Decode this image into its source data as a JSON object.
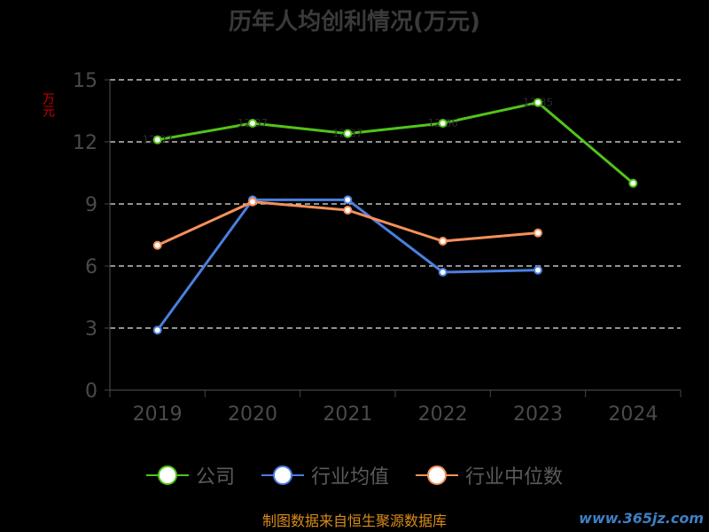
{
  "chart_data": {
    "type": "line",
    "title": "历年人均创利情况(万元)",
    "ylabel": "万元",
    "xlabel": "",
    "categories": [
      "2019",
      "2020",
      "2021",
      "2022",
      "2023",
      "2024"
    ],
    "ylim": [
      0,
      15
    ],
    "yticks": [
      0,
      3,
      6,
      9,
      12,
      15
    ],
    "grid": true,
    "legend_position": "bottom",
    "series": [
      {
        "name": "公司",
        "color": "#52c41a",
        "values": [
          12.1,
          12.9,
          12.4,
          12.9,
          13.9,
          10.0
        ],
        "labels": [
          "12.07",
          "12.87",
          "12.37",
          "12.86",
          "13.85",
          ""
        ]
      },
      {
        "name": "行业均值",
        "color": "#4a7fe0",
        "values": [
          2.9,
          9.2,
          9.2,
          5.7,
          5.8,
          null
        ]
      },
      {
        "name": "行业中位数",
        "color": "#f5915a",
        "values": [
          7.0,
          9.1,
          8.7,
          7.2,
          7.6,
          null
        ]
      }
    ]
  },
  "source": "制图数据来自恒生聚源数据库",
  "watermark": "www.365jz.com"
}
